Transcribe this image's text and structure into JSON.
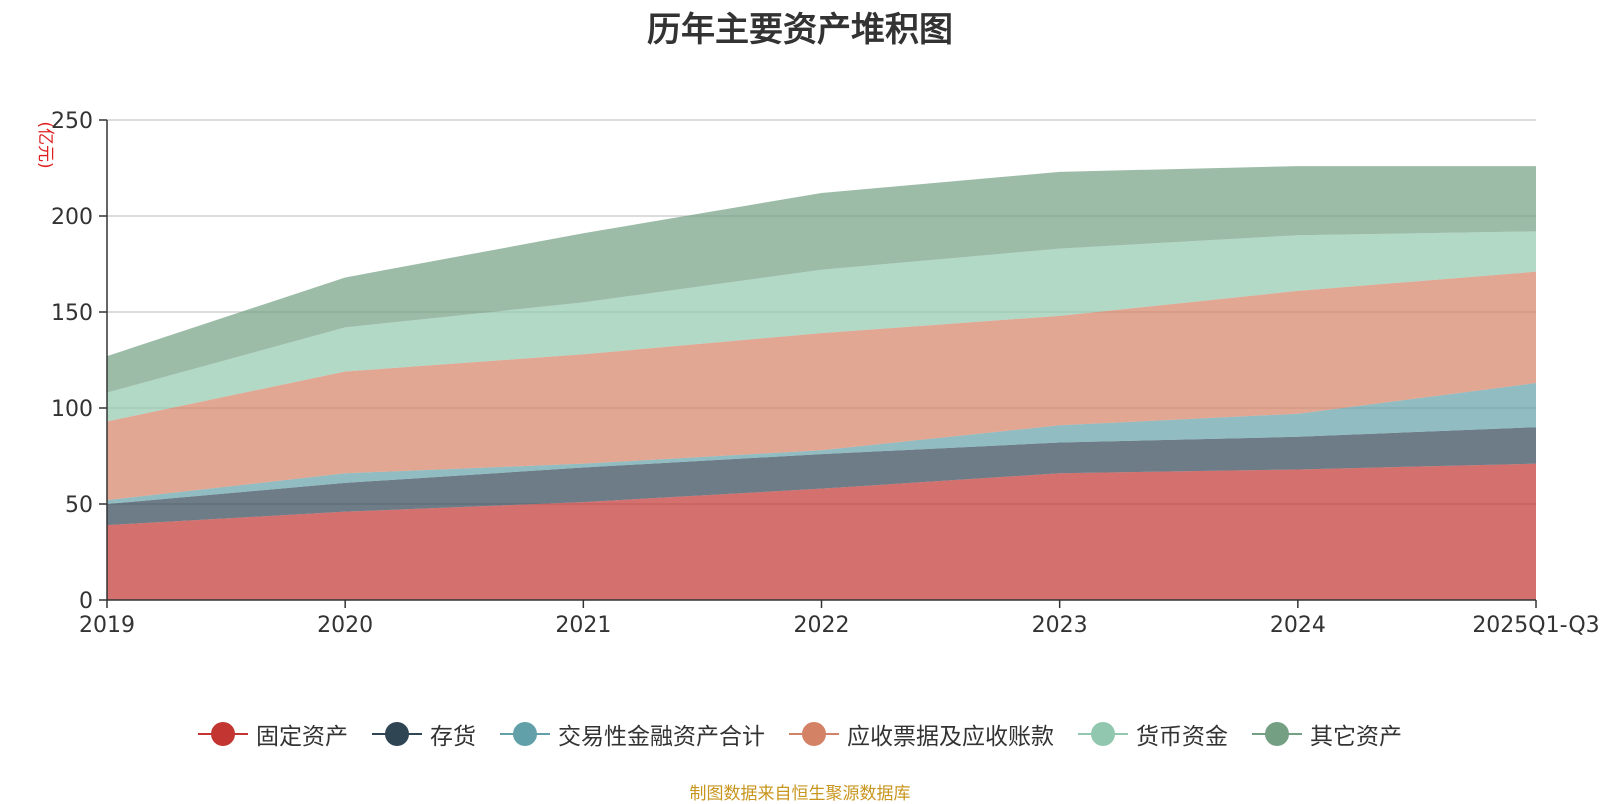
{
  "title": "历年主要资产堆积图",
  "source_note": "制图数据来自恒生聚源数据库",
  "colors": {
    "source_note": "#c8961e",
    "unit": "#e02020"
  },
  "chart_data": {
    "type": "area",
    "stacked": true,
    "title": "历年主要资产堆积图",
    "ylabel": "(亿元)",
    "xlabel": "",
    "categories": [
      "2019",
      "2020",
      "2021",
      "2022",
      "2023",
      "2024",
      "2025Q1-Q3"
    ],
    "ylim": [
      0,
      250
    ],
    "yticks": [
      0,
      50,
      100,
      150,
      200,
      250
    ],
    "grid": true,
    "legend_position": "bottom",
    "series": [
      {
        "name": "固定资产",
        "color": "#c23531",
        "values": [
          39,
          46,
          51,
          58,
          66,
          68,
          71
        ]
      },
      {
        "name": "存货",
        "color": "#2f4554",
        "values": [
          11,
          15,
          18,
          18,
          16,
          17,
          19
        ]
      },
      {
        "name": "交易性金融资产合计",
        "color": "#61a0a8",
        "values": [
          2,
          5,
          2,
          2,
          9,
          12,
          23
        ]
      },
      {
        "name": "应收票据及应收账款",
        "color": "#d48265",
        "values": [
          41,
          53,
          57,
          61,
          57,
          64,
          58
        ]
      },
      {
        "name": "货币资金",
        "color": "#91c7ae",
        "values": [
          15,
          23,
          27,
          33,
          35,
          29,
          21
        ]
      },
      {
        "name": "其它资产",
        "color": "#749f83",
        "values": [
          19,
          26,
          36,
          40,
          40,
          36,
          34
        ]
      }
    ]
  }
}
